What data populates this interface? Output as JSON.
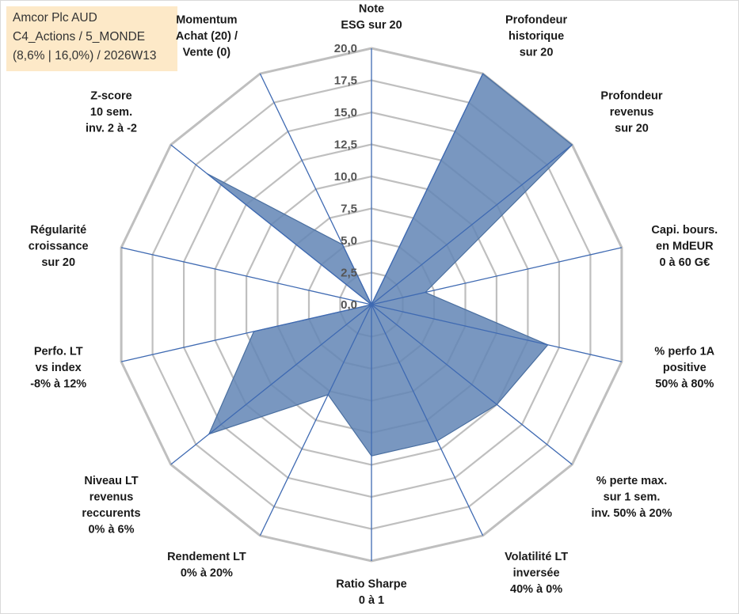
{
  "header": {
    "lines": [
      "Amcor Plc AUD",
      "C4_Actions / 5_MONDE",
      "(8,6% | 16,0%) / 2026W13"
    ]
  },
  "chart_data": {
    "type": "radar",
    "scale": {
      "min": 0,
      "max": 20,
      "step": 2.5
    },
    "tick_labels": [
      "0,0",
      "2,5",
      "5,0",
      "7,5",
      "10,0",
      "12,5",
      "15,0",
      "17,5",
      "20,0"
    ],
    "axes": [
      {
        "label_lines": [
          "Note",
          "ESG sur 20"
        ],
        "value": 0
      },
      {
        "label_lines": [
          "Profondeur",
          "historique",
          "sur 20"
        ],
        "value": 20
      },
      {
        "label_lines": [
          "Profondeur",
          "revenus",
          "sur 20"
        ],
        "value": 20
      },
      {
        "label_lines": [
          "Capi. bours.",
          "en MdEUR",
          "0 à 60 G€"
        ],
        "value": 4.3
      },
      {
        "label_lines": [
          "% perfo 1A",
          "positive",
          "50% à 80%"
        ],
        "value": 14.1
      },
      {
        "label_lines": [
          "% perte max.",
          "sur 1 sem.",
          "inv. 50% à 20%"
        ],
        "value": 12.5
      },
      {
        "label_lines": [
          "Volatilité LT",
          "inversée",
          "40% à 0%"
        ],
        "value": 11.8
      },
      {
        "label_lines": [
          "Ratio Sharpe",
          "0 à 1"
        ],
        "value": 11.8
      },
      {
        "label_lines": [
          "Rendement LT",
          "0% à 20%"
        ],
        "value": 7.8
      },
      {
        "label_lines": [
          "Niveau LT",
          "revenus",
          "reccurents",
          "0% à 6%"
        ],
        "value": 16.2
      },
      {
        "label_lines": [
          "Perfo. LT",
          "vs index",
          "-8% à 12%"
        ],
        "value": 9.4
      },
      {
        "label_lines": [
          "Régularité",
          "croissance",
          "sur 20"
        ],
        "value": 0
      },
      {
        "label_lines": [
          "Z-score",
          "10 sem.",
          "inv. 2 à -2"
        ],
        "value": 16.4
      },
      {
        "label_lines": [
          "Momentum",
          "Achat (20) /",
          "Vente (0)"
        ],
        "value": 5.2
      }
    ],
    "colors": {
      "fill": "#6185b5",
      "stroke": "#4a6fa0",
      "grid": "#bfbfbf",
      "spoke": "#3f6ab2"
    },
    "grid": true,
    "legend": "none"
  }
}
